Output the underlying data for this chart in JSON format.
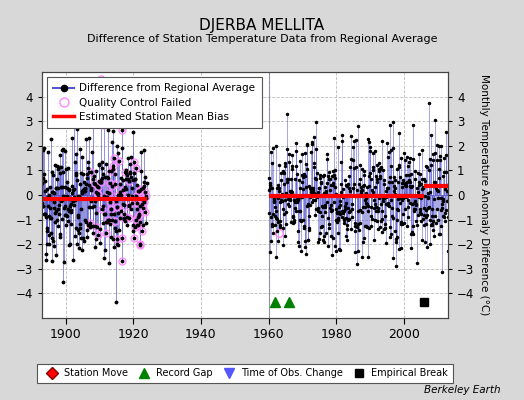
{
  "title": "DJERBA MELLITA",
  "subtitle": "Difference of Station Temperature Data from Regional Average",
  "ylabel": "Monthly Temperature Anomaly Difference (°C)",
  "credit": "Berkeley Earth",
  "ylim": [
    -5,
    5
  ],
  "xlim": [
    1893,
    2013
  ],
  "yticks": [
    -4,
    -3,
    -2,
    -1,
    0,
    1,
    2,
    3,
    4
  ],
  "xticks": [
    1900,
    1920,
    1940,
    1960,
    1980,
    2000
  ],
  "segment1_start": 1893,
  "segment1_end": 1924,
  "segment1_bias": -0.15,
  "segment2_start": 1960,
  "segment2_end": 2006,
  "segment2_bias": -0.05,
  "segment3_start": 2006,
  "segment3_end": 2013,
  "segment3_bias": 0.35,
  "record_gaps": [
    1962,
    1966
  ],
  "empirical_breaks": [
    2006
  ],
  "background_color": "#d8d8d8",
  "plot_bg_color": "#ffffff",
  "grid_color": "#bbbbbb",
  "line_color": "#5555cc",
  "line_alpha": 0.65,
  "bias_color": "#ff0000",
  "qc_color": "#ff88ff",
  "seed": 42,
  "seed2": 100
}
